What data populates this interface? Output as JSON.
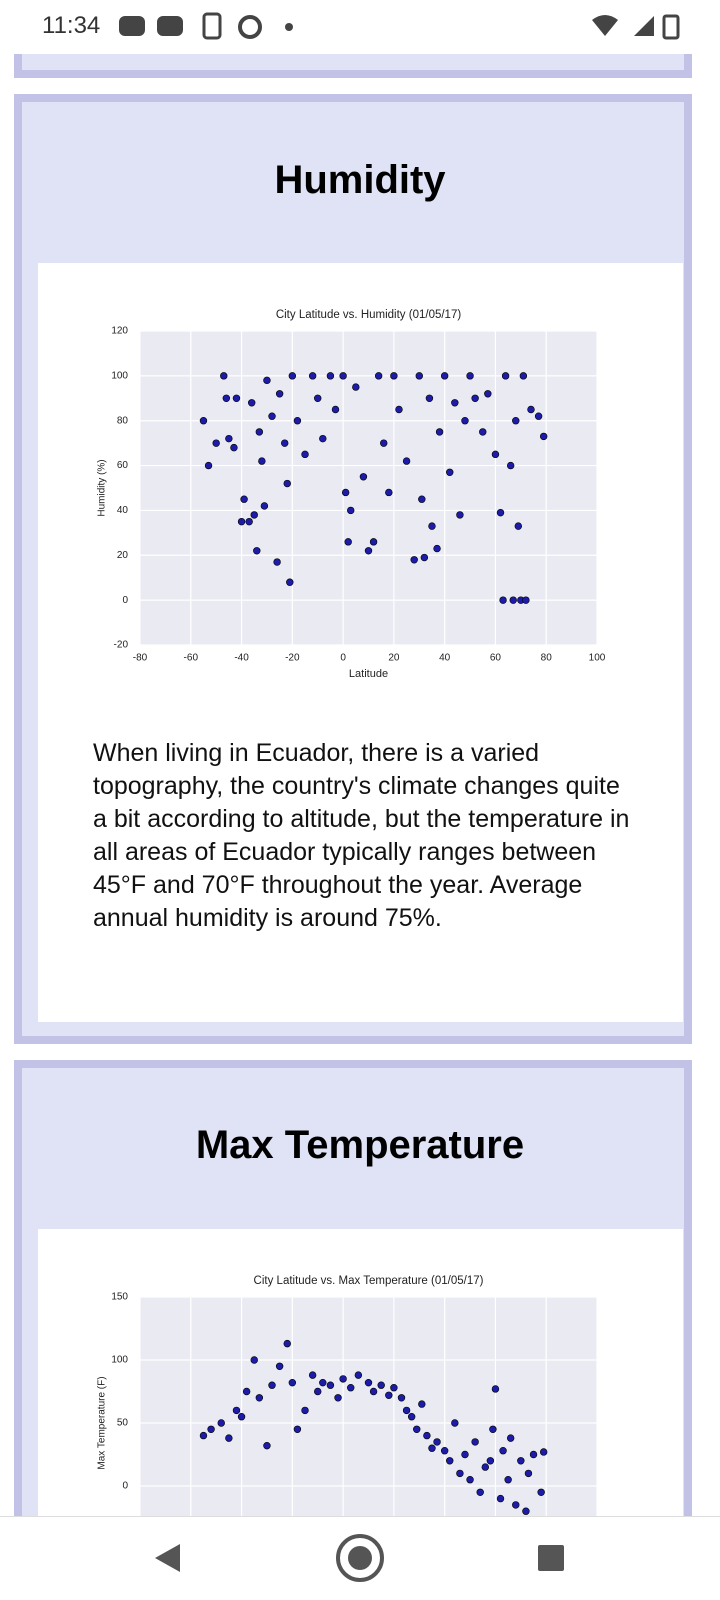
{
  "status_bar": {
    "time": "11:34"
  },
  "sections": [
    {
      "heading": "Humidity",
      "text": "When living in Ecuador, there is a varied topography, the country's climate changes quite a bit according to altitude, but the temperature in all areas of Ecuador typically ranges between 45°F and 70°F throughout the year. Average annual humidity is around 75%."
    },
    {
      "heading": "Max Temperature"
    }
  ],
  "chart_data": [
    {
      "type": "scatter",
      "title": "City Latitude vs. Humidity (01/05/17)",
      "x_label": "Latitude",
      "y_label": "Humidity (%)",
      "xlim": [
        -80,
        100
      ],
      "xticks": [
        -80,
        -60,
        -40,
        -20,
        0,
        20,
        40,
        60,
        80,
        100
      ],
      "ylim": [
        -20,
        120
      ],
      "yticks": [
        -20,
        0,
        20,
        40,
        60,
        80,
        100,
        120
      ],
      "grid": true,
      "series": [
        {
          "color": "#1c1ca8",
          "x": [
            -55,
            -53,
            -50,
            -47,
            -46,
            -45,
            -43,
            -42,
            -40,
            -39,
            -37,
            -36,
            -35,
            -34,
            -33,
            -32,
            -31,
            -30,
            -28,
            -26,
            -25,
            -23,
            -22,
            -21,
            -20,
            -18,
            -15,
            -12,
            -10,
            -8,
            -5,
            -3,
            0,
            1,
            2,
            3,
            5,
            8,
            10,
            12,
            14,
            16,
            18,
            20,
            22,
            25,
            28,
            30,
            31,
            32,
            34,
            35,
            37,
            38,
            40,
            42,
            44,
            46,
            48,
            50,
            52,
            55,
            57,
            60,
            62,
            63,
            64,
            66,
            67,
            68,
            69,
            70,
            71,
            72,
            74,
            77,
            79
          ],
          "values": [
            80,
            60,
            70,
            100,
            90,
            72,
            68,
            90,
            35,
            45,
            35,
            88,
            38,
            22,
            75,
            62,
            42,
            98,
            82,
            17,
            92,
            70,
            52,
            8,
            100,
            80,
            65,
            100,
            90,
            72,
            100,
            85,
            100,
            48,
            26,
            40,
            95,
            55,
            22,
            26,
            100,
            70,
            48,
            100,
            85,
            62,
            18,
            100,
            45,
            19,
            90,
            33,
            23,
            75,
            100,
            57,
            88,
            38,
            80,
            100,
            90,
            75,
            92,
            65,
            39,
            0,
            100,
            60,
            0,
            80,
            33,
            0,
            100,
            0,
            85,
            82,
            73
          ]
        }
      ]
    },
    {
      "type": "scatter",
      "title": "City Latitude vs. Max Temperature (01/05/17)",
      "y_label": "Max Temperature (F)",
      "xlim": [
        -80,
        100
      ],
      "xticks": [
        -80,
        -60,
        -40,
        -20,
        0,
        20,
        40,
        60,
        80,
        100
      ],
      "ylim": [
        -50,
        150
      ],
      "yticks": [
        0,
        50,
        100,
        150
      ],
      "grid": true,
      "series": [
        {
          "color": "#1c1ca8",
          "x": [
            -55,
            -52,
            -48,
            -45,
            -42,
            -40,
            -38,
            -35,
            -33,
            -30,
            -28,
            -25,
            -22,
            -20,
            -18,
            -15,
            -12,
            -10,
            -8,
            -5,
            -2,
            0,
            3,
            6,
            10,
            12,
            15,
            18,
            20,
            23,
            25,
            27,
            29,
            31,
            33,
            35,
            37,
            40,
            42,
            44,
            46,
            48,
            50,
            52,
            54,
            56,
            58,
            59,
            60,
            62,
            63,
            65,
            66,
            68,
            70,
            72,
            73,
            75,
            78,
            79
          ],
          "values": [
            40,
            45,
            50,
            38,
            60,
            55,
            75,
            100,
            70,
            32,
            80,
            95,
            113,
            82,
            45,
            60,
            88,
            75,
            82,
            80,
            70,
            85,
            78,
            88,
            82,
            75,
            80,
            72,
            78,
            70,
            60,
            55,
            45,
            65,
            40,
            30,
            35,
            28,
            20,
            50,
            10,
            25,
            5,
            35,
            -5,
            15,
            20,
            45,
            77,
            -10,
            28,
            5,
            38,
            -15,
            20,
            -20,
            10,
            25,
            -5,
            27
          ]
        }
      ]
    }
  ]
}
